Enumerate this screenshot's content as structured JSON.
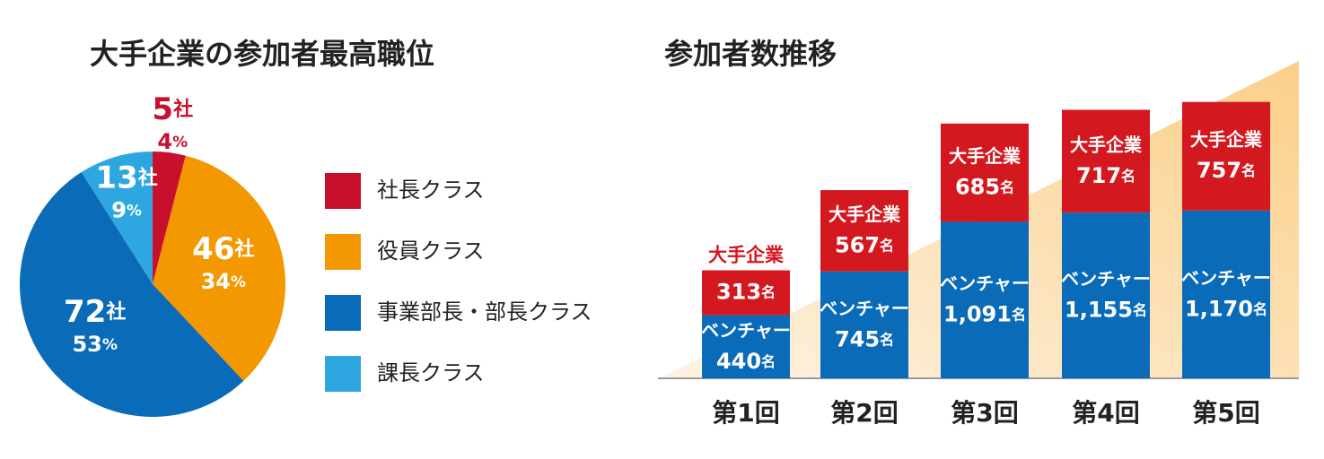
{
  "chart_data": [
    {
      "type": "pie",
      "title": "大手企業の参加者最高職位",
      "categories": [
        "社長クラス",
        "役員クラス",
        "事業部長・部長クラス",
        "課長クラス"
      ],
      "values": [
        4,
        34,
        53,
        9
      ],
      "value_unit": "%",
      "counts": [
        5,
        46,
        72,
        13
      ],
      "count_unit": "社",
      "colors": [
        "#c8102e",
        "#f39800",
        "#0a6bb8",
        "#2ea7e0"
      ]
    },
    {
      "type": "bar",
      "stacked": true,
      "title": "参加者数推移",
      "categories": [
        "第1回",
        "第2回",
        "第3回",
        "第4回",
        "第5回"
      ],
      "value_unit": "名",
      "series": [
        {
          "name": "ベンチャー",
          "color": "#0a6bb8",
          "values": [
            440,
            745,
            1091,
            1155,
            1170
          ],
          "value_labels": [
            "440",
            "745",
            "1,091",
            "1,155",
            "1,170"
          ]
        },
        {
          "name": "大手企業",
          "color": "#d4181f",
          "values": [
            313,
            567,
            685,
            717,
            757
          ]
        }
      ]
    }
  ]
}
